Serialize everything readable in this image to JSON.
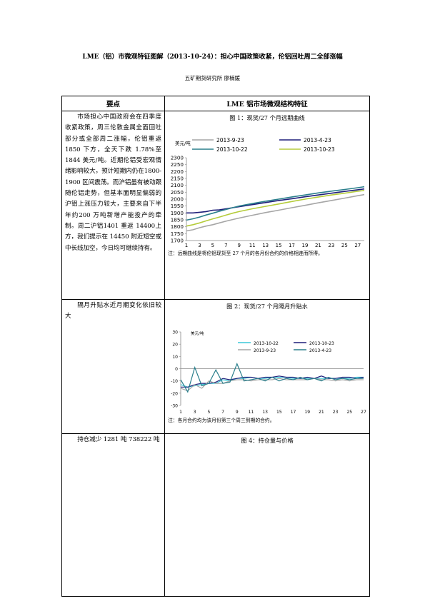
{
  "title": "LME（铝）市微观特征图解（2013-10-24）：担心中国政策收紧，伦铝回吐周二全部涨幅",
  "author": "五矿期货研究所  廖楠媛",
  "table": {
    "col1_header": "要点",
    "col2_header": "LME 铝市场微观结构特征",
    "rows": [
      {
        "point": "市场担心中国政府会在四季度收紧政策，周三伦敦金属全面回吐部分或全部周二涨幅，伦铝重返 1850 下方，全天下跌 1.78%至 1844 美元/吨。近期伦铝受宏观情绪影响较大，预计短期内仍在1800-1900 区间震荡。而沪铝虽有被动跟随伦铝走势，但基本面明显偏弱的沪铝上涨压力较大，主要来自下半年约200 万吨新增产能投产的牵制。周二沪铝1401 重返 14400上方，我们提示在 14450 附近短空或中长线加空，今日均可继续持有。",
        "caption": "图 1：现货/27 个月远期曲线",
        "note": "注：远期曲线是将伦铝现货至 27 个月的各月份合约的价格相连而所得。"
      },
      {
        "point": "隔月升贴水近月期变化依旧较大",
        "caption": "图 2：现货/27 个月隔月升贴水",
        "note": "注：各月合约均为该月份第三个周三到期的合约。"
      },
      {
        "point": "持仓减少 1281 吨 738222 吨",
        "caption": "图 4：持仓量与价格"
      }
    ]
  },
  "chart_data": [
    {
      "type": "line",
      "ylabel": "美元/吨",
      "ylim": [
        1700,
        2300
      ],
      "yticks": [
        1700,
        1750,
        1800,
        1850,
        1900,
        1950,
        2000,
        2050,
        2100,
        2150,
        2200,
        2250,
        2300
      ],
      "x": [
        1,
        3,
        5,
        7,
        9,
        11,
        13,
        15,
        17,
        19,
        21,
        23,
        25,
        27
      ],
      "xlim": [
        1,
        28
      ],
      "legend_position": "top",
      "series": [
        {
          "name": "2013-9-23",
          "color": "#a6a6a6",
          "points": [
            [
              1,
              1770
            ],
            [
              2,
              1778
            ],
            [
              3,
              1793
            ],
            [
              4,
              1805
            ],
            [
              5,
              1815
            ],
            [
              6,
              1828
            ],
            [
              7,
              1840
            ],
            [
              8,
              1852
            ],
            [
              9,
              1863
            ],
            [
              11,
              1883
            ],
            [
              13,
              1903
            ],
            [
              15,
              1920
            ],
            [
              17,
              1938
            ],
            [
              19,
              1955
            ],
            [
              21,
              1973
            ],
            [
              23,
              1990
            ],
            [
              25,
              2007
            ],
            [
              27,
              2025
            ],
            [
              28,
              2033
            ]
          ]
        },
        {
          "name": "2013-4-23",
          "color": "#1f1f7a",
          "points": [
            [
              1,
              1900
            ],
            [
              2,
              1900
            ],
            [
              3,
              1905
            ],
            [
              4,
              1910
            ],
            [
              5,
              1920
            ],
            [
              6,
              1922
            ],
            [
              7,
              1930
            ],
            [
              8,
              1938
            ],
            [
              9,
              1945
            ],
            [
              11,
              1960
            ],
            [
              13,
              1975
            ],
            [
              15,
              1990
            ],
            [
              17,
              2003
            ],
            [
              19,
              2017
            ],
            [
              21,
              2030
            ],
            [
              23,
              2043
            ],
            [
              25,
              2056
            ],
            [
              27,
              2068
            ],
            [
              28,
              2074
            ]
          ]
        },
        {
          "name": "2013-10-22",
          "color": "#2a7f8c",
          "points": [
            [
              1,
              1848
            ],
            [
              2,
              1858
            ],
            [
              3,
              1870
            ],
            [
              4,
              1885
            ],
            [
              5,
              1898
            ],
            [
              6,
              1912
            ],
            [
              7,
              1925
            ],
            [
              8,
              1938
            ],
            [
              9,
              1950
            ],
            [
              11,
              1968
            ],
            [
              13,
              1985
            ],
            [
              15,
              2000
            ],
            [
              17,
              2016
            ],
            [
              19,
              2030
            ],
            [
              21,
              2045
            ],
            [
              23,
              2058
            ],
            [
              25,
              2070
            ],
            [
              27,
              2083
            ],
            [
              28,
              2090
            ]
          ]
        },
        {
          "name": "2013-10-23",
          "color": "#b5cc3b",
          "points": [
            [
              1,
              1805
            ],
            [
              2,
              1815
            ],
            [
              3,
              1828
            ],
            [
              4,
              1843
            ],
            [
              5,
              1857
            ],
            [
              6,
              1870
            ],
            [
              7,
              1884
            ],
            [
              8,
              1898
            ],
            [
              9,
              1910
            ],
            [
              11,
              1930
            ],
            [
              13,
              1948
            ],
            [
              15,
              1965
            ],
            [
              17,
              1983
            ],
            [
              19,
              2000
            ],
            [
              21,
              2015
            ],
            [
              23,
              2030
            ],
            [
              25,
              2043
            ],
            [
              27,
              2057
            ],
            [
              28,
              2063
            ]
          ]
        }
      ]
    },
    {
      "type": "line",
      "ylabel": "美元/吨",
      "ylim": [
        -30,
        30
      ],
      "yticks": [
        -30,
        -20,
        -10,
        0,
        10,
        20,
        30
      ],
      "x": [
        1,
        3,
        5,
        7,
        9,
        11,
        13,
        15,
        17,
        19,
        21,
        23,
        25,
        27
      ],
      "xlim": [
        1,
        27
      ],
      "legend_position": "top",
      "series": [
        {
          "name": "2013-10-22",
          "color": "#3cc8d8",
          "points": [
            [
              1,
              -13
            ],
            [
              2,
              -15
            ],
            [
              3,
              -14
            ],
            [
              4,
              -13
            ],
            [
              5,
              -12
            ],
            [
              6,
              -12
            ],
            [
              7,
              -9
            ],
            [
              8,
              -10
            ],
            [
              9,
              -8
            ],
            [
              10,
              -8
            ],
            [
              11,
              -7
            ],
            [
              12,
              -8
            ],
            [
              13,
              -8
            ],
            [
              14,
              -7
            ],
            [
              15,
              -7
            ],
            [
              16,
              -7
            ],
            [
              17,
              -8
            ],
            [
              18,
              -8
            ],
            [
              19,
              -8
            ],
            [
              20,
              -8
            ],
            [
              21,
              -8
            ],
            [
              22,
              -8
            ],
            [
              23,
              -8
            ],
            [
              24,
              -8
            ],
            [
              25,
              -8
            ],
            [
              26,
              -7
            ],
            [
              27,
              -7
            ]
          ]
        },
        {
          "name": "2013-10-23",
          "color": "#1f1f7a",
          "points": [
            [
              1,
              -15
            ],
            [
              2,
              -15
            ],
            [
              3,
              -13
            ],
            [
              4,
              -12
            ],
            [
              5,
              -12
            ],
            [
              6,
              -11
            ],
            [
              7,
              -8
            ],
            [
              8,
              -9
            ],
            [
              9,
              -8
            ],
            [
              10,
              -7
            ],
            [
              11,
              -7
            ],
            [
              12,
              -8
            ],
            [
              13,
              -7
            ],
            [
              14,
              -7
            ],
            [
              15,
              -6
            ],
            [
              16,
              -7
            ],
            [
              17,
              -7
            ],
            [
              18,
              -8
            ],
            [
              19,
              -7
            ],
            [
              20,
              -8
            ],
            [
              21,
              -6
            ],
            [
              22,
              -8
            ],
            [
              23,
              -8
            ],
            [
              24,
              -7
            ],
            [
              25,
              -7
            ],
            [
              26,
              -8
            ],
            [
              27,
              -7
            ]
          ]
        },
        {
          "name": "2013-9-23",
          "color": "#a6a6a6",
          "points": [
            [
              1,
              -16
            ],
            [
              2,
              -18
            ],
            [
              3,
              -13
            ],
            [
              4,
              -16
            ],
            [
              5,
              -10
            ],
            [
              6,
              -12
            ],
            [
              7,
              -12
            ],
            [
              8,
              -10
            ],
            [
              9,
              -9
            ],
            [
              10,
              -9
            ],
            [
              11,
              -10
            ],
            [
              12,
              -9
            ],
            [
              13,
              -9
            ],
            [
              14,
              -9
            ],
            [
              15,
              -8
            ],
            [
              16,
              -9
            ],
            [
              17,
              -9
            ],
            [
              18,
              -9
            ],
            [
              19,
              -9
            ],
            [
              20,
              -8
            ],
            [
              21,
              -9
            ],
            [
              22,
              -9
            ],
            [
              23,
              -10
            ],
            [
              24,
              -9
            ],
            [
              25,
              -10
            ],
            [
              26,
              -9
            ],
            [
              27,
              -9
            ]
          ]
        },
        {
          "name": "2013-4-23",
          "color": "#2a7f8c",
          "points": [
            [
              1,
              -9
            ],
            [
              2,
              -19
            ],
            [
              3,
              1
            ],
            [
              4,
              -14
            ],
            [
              5,
              -12
            ],
            [
              6,
              -1
            ],
            [
              7,
              -12
            ],
            [
              8,
              -11
            ],
            [
              9,
              4
            ],
            [
              10,
              -10
            ],
            [
              11,
              -9
            ],
            [
              12,
              -8
            ],
            [
              13,
              -10
            ],
            [
              14,
              -7
            ],
            [
              15,
              -10
            ],
            [
              16,
              -8
            ],
            [
              17,
              -9
            ],
            [
              18,
              -7
            ],
            [
              19,
              -9
            ],
            [
              20,
              -8
            ],
            [
              21,
              -10
            ],
            [
              22,
              -7
            ],
            [
              23,
              -9
            ],
            [
              24,
              -8
            ],
            [
              25,
              -9
            ],
            [
              26,
              -8
            ],
            [
              27,
              -8
            ]
          ]
        }
      ]
    }
  ]
}
